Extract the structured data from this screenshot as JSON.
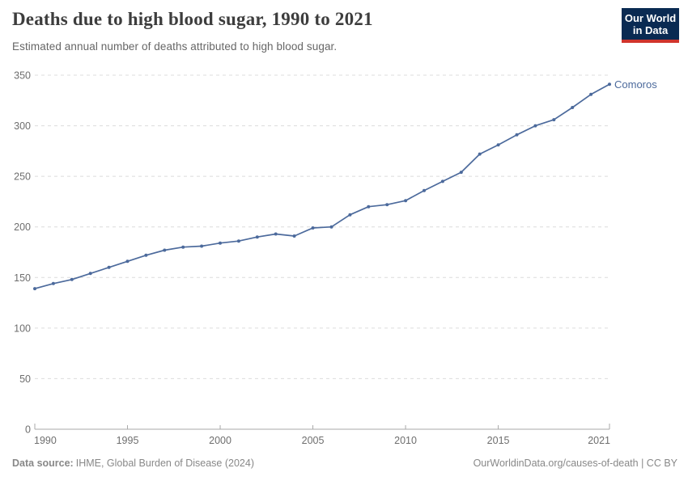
{
  "header": {
    "title": "Deaths due to high blood sugar, 1990 to 2021",
    "subtitle": "Estimated annual number of deaths attributed to high blood sugar.",
    "logo": {
      "line1": "Our World",
      "line2": "in Data",
      "bg_color": "#0a2a52",
      "accent_color": "#d0342c"
    }
  },
  "chart_data": {
    "type": "line",
    "title": "Deaths due to high blood sugar, 1990 to 2021",
    "xlabel": "",
    "ylabel": "",
    "xlim": [
      1990,
      2021
    ],
    "ylim": [
      0,
      350
    ],
    "xticks": [
      1990,
      1995,
      2000,
      2005,
      2010,
      2015,
      2021
    ],
    "yticks": [
      0,
      50,
      100,
      150,
      200,
      250,
      300,
      350
    ],
    "grid": "horizontal-dashed",
    "legend_position": "end-of-line-label",
    "x": [
      1990,
      1991,
      1992,
      1993,
      1994,
      1995,
      1996,
      1997,
      1998,
      1999,
      2000,
      2001,
      2002,
      2003,
      2004,
      2005,
      2006,
      2007,
      2008,
      2009,
      2010,
      2011,
      2012,
      2013,
      2014,
      2015,
      2016,
      2017,
      2018,
      2019,
      2020,
      2021
    ],
    "series": [
      {
        "name": "Comoros",
        "color": "#4c6a9c",
        "values": [
          139,
          144,
          148,
          154,
          160,
          166,
          172,
          177,
          180,
          181,
          184,
          186,
          190,
          193,
          191,
          199,
          200,
          212,
          220,
          222,
          226,
          236,
          245,
          254,
          272,
          281,
          291,
          300,
          306,
          318,
          331,
          341
        ]
      }
    ],
    "colors": {
      "gridline": "#dcdcdc",
      "axis": "#a8a8a8",
      "tick_label": "#6e6e6e"
    }
  },
  "footer": {
    "source_label": "Data source:",
    "source_text": "IHME, Global Burden of Disease (2024)",
    "credit": "OurWorldinData.org/causes-of-death | CC BY"
  }
}
